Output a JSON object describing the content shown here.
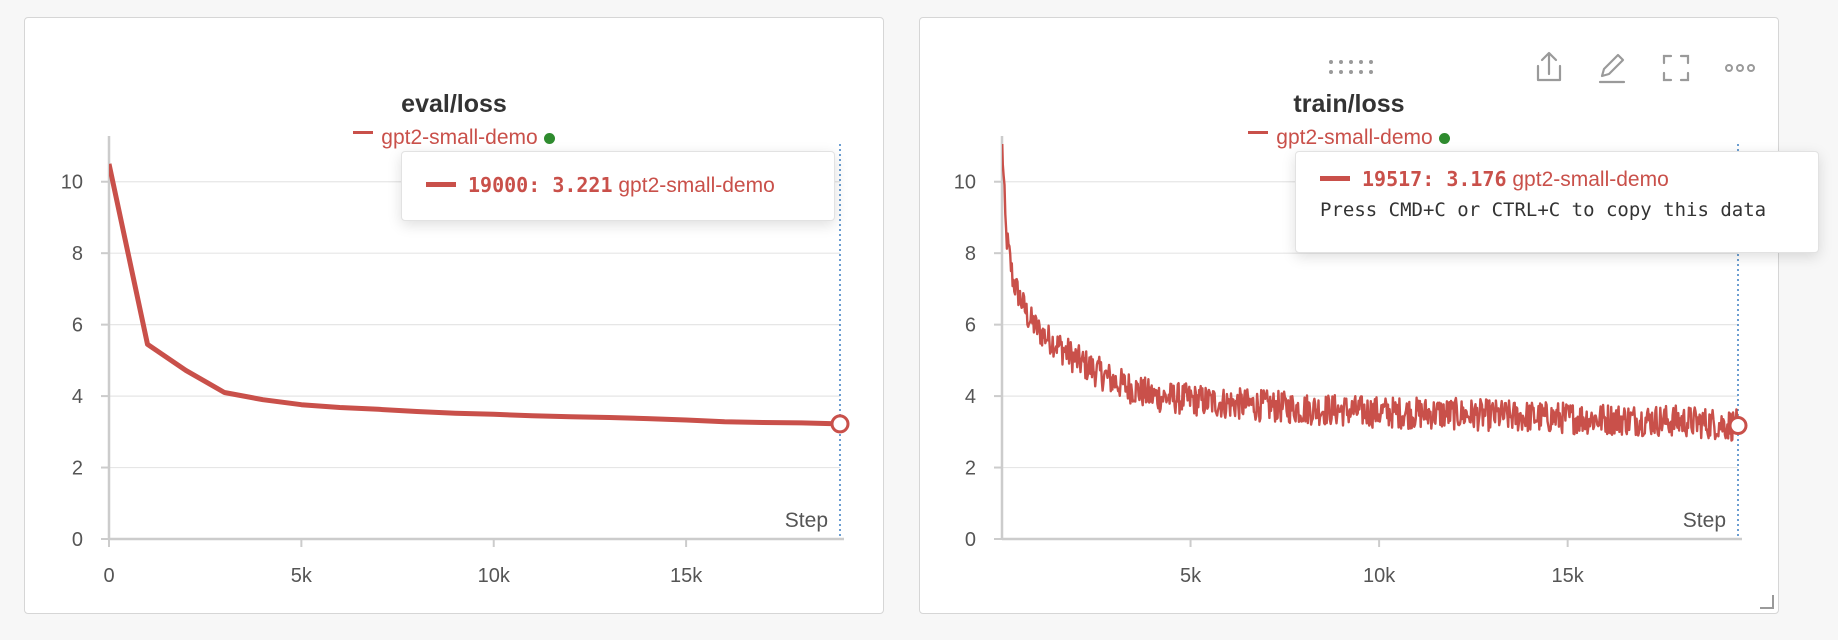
{
  "colors": {
    "series": "#c9504a",
    "grid": "#e6e6e6",
    "axis": "#cccccc",
    "cursor": "#3b7fc4",
    "dot": "#2e8b2e",
    "text": "#555555"
  },
  "toolbar": {
    "icons": [
      "drag-handle-icon",
      "share-icon",
      "edit-icon",
      "fullscreen-icon",
      "more-icon"
    ]
  },
  "chart_data": [
    {
      "type": "line",
      "title": "eval/loss",
      "xlabel": "Step",
      "ylabel": "",
      "series": [
        {
          "name": "gpt2-small-demo",
          "x": [
            0,
            1000,
            2000,
            3000,
            4000,
            5000,
            6000,
            7000,
            8000,
            9000,
            10000,
            11000,
            12000,
            13000,
            14000,
            15000,
            16000,
            17000,
            18000,
            19000
          ],
          "values": [
            10.5,
            5.45,
            4.72,
            4.1,
            3.9,
            3.76,
            3.68,
            3.63,
            3.57,
            3.52,
            3.49,
            3.45,
            3.42,
            3.4,
            3.37,
            3.33,
            3.28,
            3.26,
            3.25,
            3.221
          ]
        }
      ],
      "xlim": [
        0,
        19000
      ],
      "ylim": [
        0,
        11
      ],
      "x_ticks": [
        "0",
        "5k",
        "10k",
        "15k"
      ],
      "x_tick_values": [
        0,
        5000,
        10000,
        15000
      ],
      "y_ticks": [
        "0",
        "2",
        "4",
        "6",
        "8",
        "10"
      ],
      "y_tick_values": [
        0,
        2,
        4,
        6,
        8,
        10
      ],
      "grid": true,
      "legend": "top-center",
      "hover": {
        "step": "19000",
        "value": "3.221",
        "series": "gpt2-small-demo",
        "note": ""
      }
    },
    {
      "type": "line",
      "title": "train/loss",
      "xlabel": "Step",
      "ylabel": "",
      "series": [
        {
          "name": "gpt2-small-demo",
          "anchors_x": [
            0,
            100,
            300,
            700,
            1000,
            2000,
            3000,
            4000,
            6000,
            8000,
            10000,
            12000,
            14000,
            16000,
            18000,
            19517
          ],
          "anchors_y": [
            11.2,
            8.6,
            7.2,
            6.2,
            5.8,
            5.0,
            4.4,
            4.0,
            3.8,
            3.65,
            3.55,
            3.5,
            3.42,
            3.36,
            3.3,
            3.176
          ],
          "noise_amplitude": 0.45
        }
      ],
      "xlim": [
        0,
        19517
      ],
      "ylim": [
        0,
        11
      ],
      "x_ticks": [
        "5k",
        "10k",
        "15k"
      ],
      "x_tick_values": [
        5000,
        10000,
        15000
      ],
      "y_ticks": [
        "0",
        "2",
        "4",
        "6",
        "8",
        "10"
      ],
      "y_tick_values": [
        0,
        2,
        4,
        6,
        8,
        10
      ],
      "grid": true,
      "legend": "top-center",
      "hover": {
        "step": "19517",
        "value": "3.176",
        "series": "gpt2-small-demo",
        "note": "Press CMD+C or CTRL+C to copy this data"
      }
    }
  ]
}
